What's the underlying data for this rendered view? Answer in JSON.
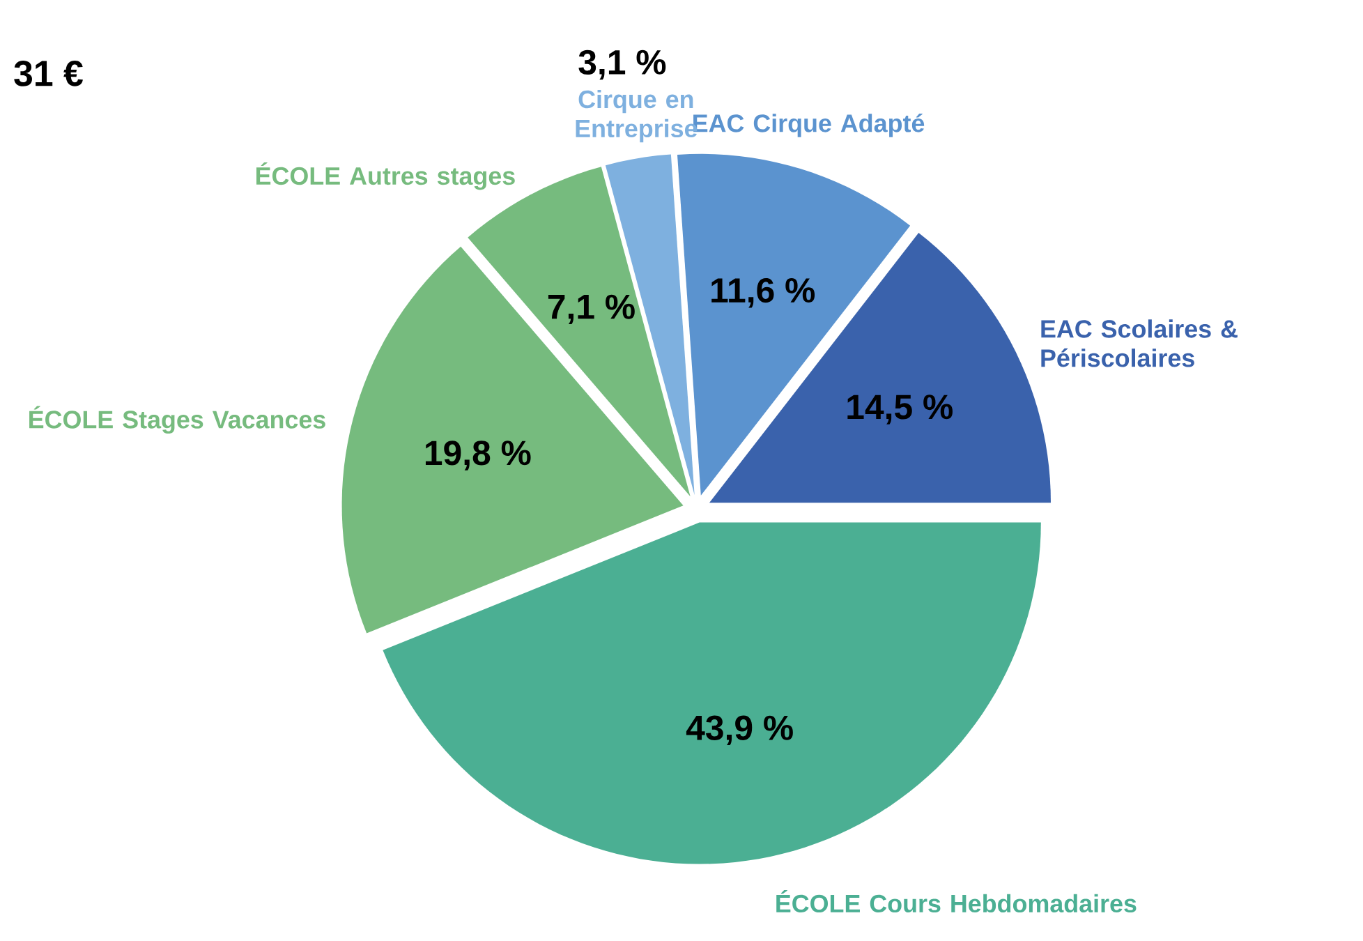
{
  "chart_data": {
    "type": "pie",
    "categories": [
      "EAC Scolaires & Périscolaires",
      "EAC Cirque Adapté",
      "Cirque en Entreprise",
      "ÉCOLE Autres stages",
      "ÉCOLE Stages Vacances",
      "ÉCOLE Cours Hebdomadaires"
    ],
    "values": [
      14.5,
      11.6,
      3.1,
      7.1,
      19.8,
      43.9
    ],
    "colors": [
      "#3a62ac",
      "#5b93cf",
      "#7eb0df",
      "#76bb7e",
      "#76bb7e",
      "#4baf93"
    ],
    "value_labels": [
      "14,5 %",
      "11,6 %",
      "3,1 %",
      "7,1 %",
      "19,8 %",
      "43,9 %"
    ],
    "annotations": [
      "31 €"
    ]
  }
}
